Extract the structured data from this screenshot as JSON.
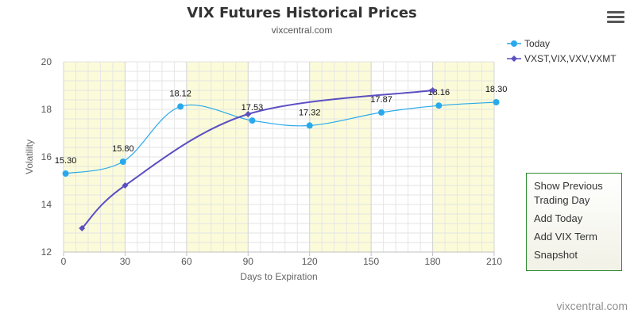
{
  "header": {
    "title": "VIX Futures Historical Prices",
    "subtitle": "vixcentral.com"
  },
  "menu_icon": "hamburger-menu-icon",
  "legend": [
    {
      "label": "Today",
      "color": "#29a9ec",
      "marker": "circle"
    },
    {
      "label": "VXST,VIX,VXV,VXMT",
      "color": "#5b4fc2",
      "marker": "diamond"
    }
  ],
  "context_menu": {
    "items": [
      "Show Previous Trading Day",
      "Add Today",
      "Add VIX Term",
      "Snapshot"
    ]
  },
  "credit": "vixcentral.com",
  "chart_data": {
    "type": "line",
    "title": "VIX Futures Historical Prices",
    "subtitle": "vixcentral.com",
    "xlabel": "Days to Expiration",
    "ylabel": "Volatility",
    "xlim": [
      0,
      210
    ],
    "ylim": [
      12,
      20
    ],
    "xticks": [
      0,
      30,
      60,
      90,
      120,
      150,
      180,
      210
    ],
    "yticks": [
      12,
      14,
      16,
      18,
      20
    ],
    "shaded_bands": [
      [
        0,
        30
      ],
      [
        60,
        90
      ],
      [
        120,
        150
      ],
      [
        180,
        210
      ]
    ],
    "band_color": "#fbfbd9",
    "grid": true,
    "legend_position": "top-right",
    "series": [
      {
        "name": "Today",
        "color": "#29a9ec",
        "marker": "circle",
        "points": [
          {
            "x": 1,
            "y": 15.3,
            "label": "15.30"
          },
          {
            "x": 29,
            "y": 15.8,
            "label": "15.80"
          },
          {
            "x": 57,
            "y": 18.12,
            "label": "18.12"
          },
          {
            "x": 92,
            "y": 17.53,
            "label": "17.53"
          },
          {
            "x": 120,
            "y": 17.32,
            "label": "17.32"
          },
          {
            "x": 155,
            "y": 17.87,
            "label": "17.87"
          },
          {
            "x": 183,
            "y": 18.16,
            "label": "18.16"
          },
          {
            "x": 211,
            "y": 18.3,
            "label": "18.30"
          }
        ]
      },
      {
        "name": "VXST,VIX,VXV,VXMT",
        "color": "#5b4fc2",
        "marker": "diamond",
        "points": [
          {
            "x": 9,
            "y": 13.0
          },
          {
            "x": 30,
            "y": 14.8
          },
          {
            "x": 90,
            "y": 17.8
          },
          {
            "x": 180,
            "y": 18.8
          }
        ]
      }
    ]
  }
}
